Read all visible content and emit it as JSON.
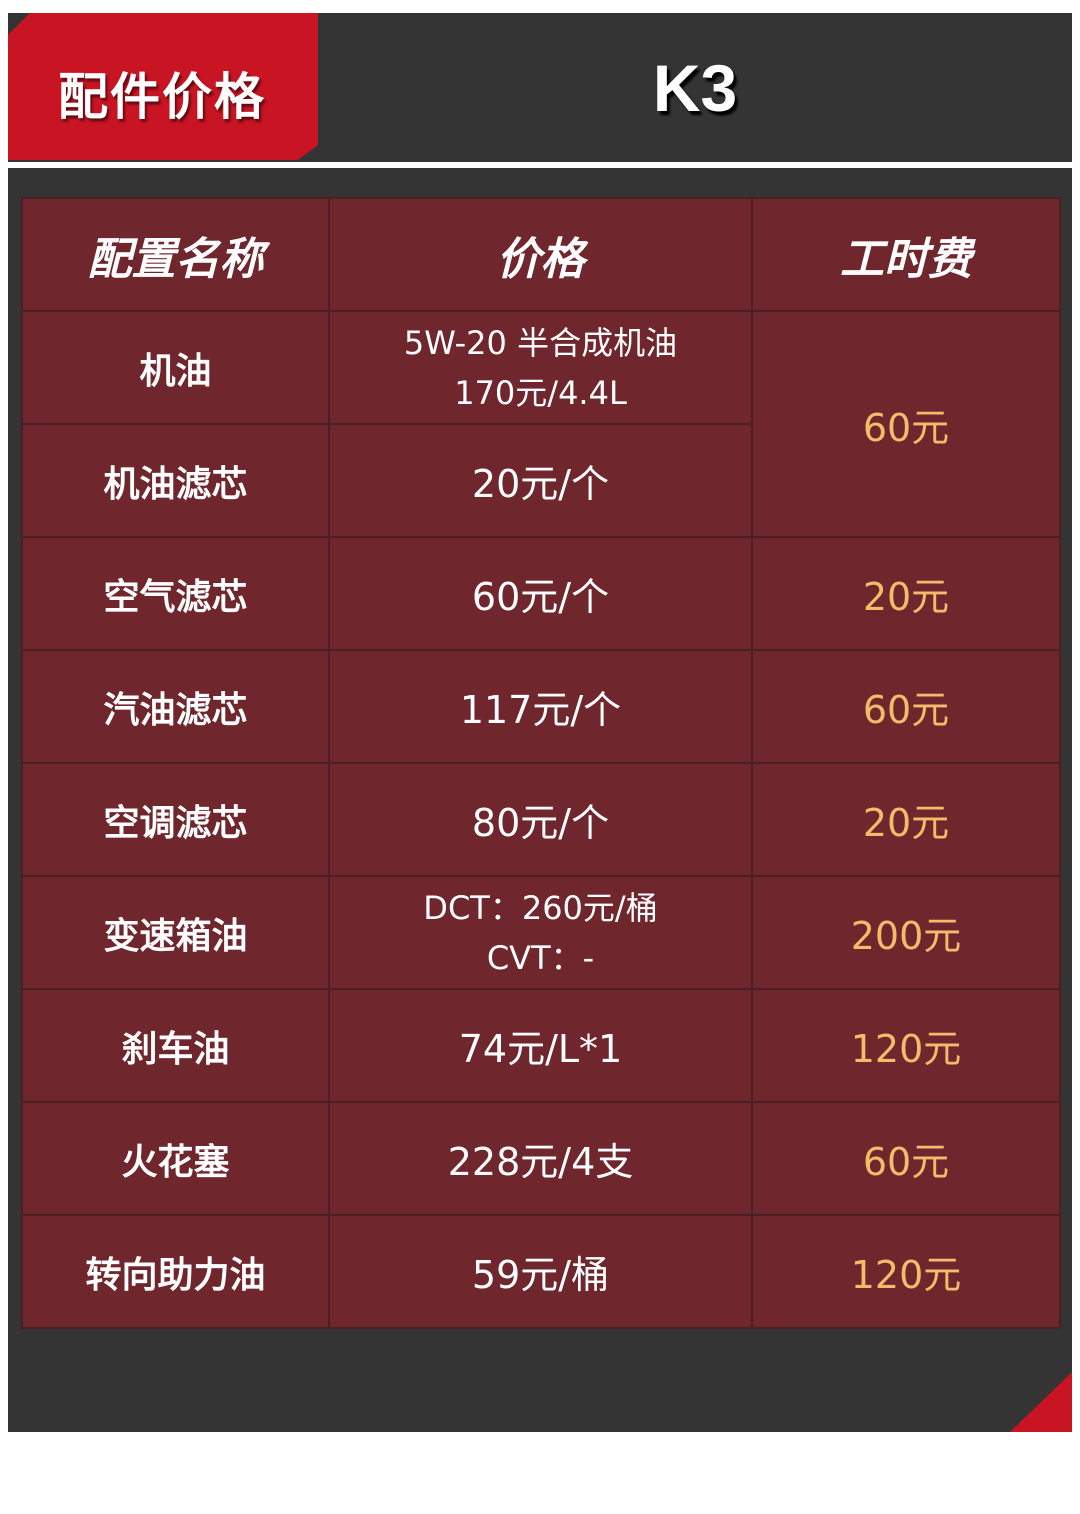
{
  "header": {
    "tab_label": "配件价格",
    "model": "K3"
  },
  "table": {
    "columns": [
      "配置名称",
      "价格",
      "工时费"
    ],
    "rows": [
      {
        "name": "机油",
        "price": [
          "5W-20 半合成机油",
          "170元/4.4L"
        ],
        "labor": "60元"
      },
      {
        "name": "机油滤芯",
        "price": [
          "20元/个"
        ],
        "labor": null
      },
      {
        "name": "空气滤芯",
        "price": [
          "60元/个"
        ],
        "labor": "20元"
      },
      {
        "name": "汽油滤芯",
        "price": [
          "117元/个"
        ],
        "labor": "60元"
      },
      {
        "name": "空调滤芯",
        "price": [
          "80元/个"
        ],
        "labor": "20元"
      },
      {
        "name": "变速箱油",
        "price": [
          "DCT：260元/桶",
          "CVT：-"
        ],
        "labor": "200元"
      },
      {
        "name": "刹车油",
        "price": [
          "74元/L*1"
        ],
        "labor": "120元"
      },
      {
        "name": "火花塞",
        "price": [
          "228元/4支"
        ],
        "labor": "60元"
      },
      {
        "name": "转向助力油",
        "price": [
          "59元/桶"
        ],
        "labor": "120元"
      }
    ]
  },
  "colors": {
    "accent": "#c81423",
    "panel": "#333433",
    "cell": "#70262d",
    "labor_text": "#f2bc6a"
  }
}
